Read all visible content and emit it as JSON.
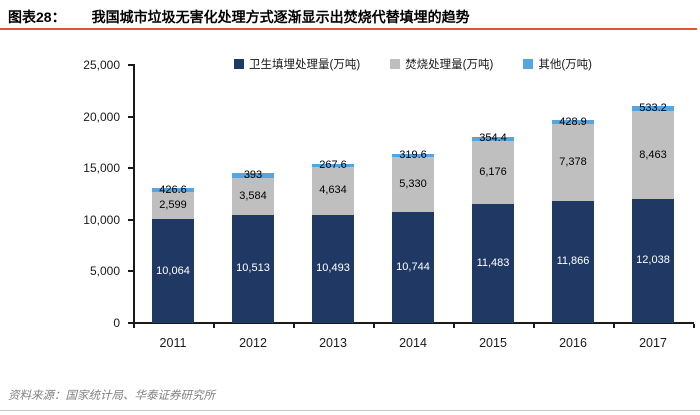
{
  "header": {
    "tag": "图表28：",
    "title": "我国城市垃圾无害化处理方式逐渐显示出焚烧代替填埋的趋势"
  },
  "chart_data": {
    "type": "bar",
    "stacked": true,
    "title": "",
    "xlabel": "",
    "ylabel": "",
    "categories": [
      "2011",
      "2012",
      "2013",
      "2014",
      "2015",
      "2016",
      "2017"
    ],
    "series": [
      {
        "name": "卫生填埋处理量(万吨)",
        "color": "#1f3864",
        "label_color": "#ffffff",
        "values": [
          10064,
          10513,
          10493,
          10744,
          11483,
          11866,
          12038
        ],
        "labels": [
          "10,064",
          "10,513",
          "10,493",
          "10,744",
          "11,483",
          "11,866",
          "12,038"
        ]
      },
      {
        "name": "焚烧处理量(万吨)",
        "color": "#bfbfbf",
        "label_color": "#000000",
        "values": [
          2599,
          3584,
          4634,
          5330,
          6176,
          7378,
          8463
        ],
        "labels": [
          "2,599",
          "3,584",
          "4,634",
          "5,330",
          "6,176",
          "7,378",
          "8,463"
        ]
      },
      {
        "name": "其他(万吨)",
        "color": "#55a6e0",
        "label_color": "#000000",
        "values": [
          426.6,
          393,
          267.6,
          319.6,
          354.4,
          428.9,
          533.2
        ],
        "labels": [
          "426.6",
          "393",
          "267.6",
          "319.6",
          "354.4",
          "428.9",
          "533.2"
        ]
      }
    ],
    "ylim": [
      0,
      25000
    ],
    "ytick_step": 5000,
    "ytick_labels": [
      "0",
      "5,000",
      "10,000",
      "15,000",
      "20,000",
      "25,000"
    ],
    "grid": false,
    "legend_position": "top"
  },
  "footer": {
    "source": "资料来源：国家统计局、华泰证券研究所"
  }
}
